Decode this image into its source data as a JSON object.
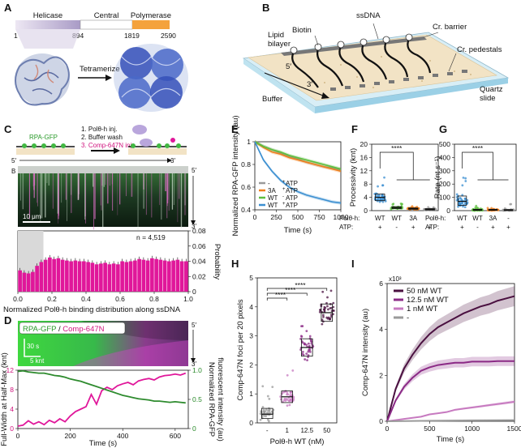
{
  "panels": {
    "A": {
      "label": "A",
      "domains": [
        "Helicase",
        "Central",
        "Polymerase"
      ],
      "positions": [
        "1",
        "894",
        "1819",
        "2590"
      ],
      "tetramerize": "Tetramerize"
    },
    "B": {
      "label": "B",
      "labels": {
        "ssdna": "ssDNA",
        "biotin": "Biotin",
        "lipid1": "Lipid",
        "lipid2": "bilayer",
        "cr_barrier": "Cr. barrier",
        "cr_pedestals": "Cr. pedestals",
        "five": "5′",
        "three": "3′",
        "buffer1": "Buffer",
        "buffer2": "flow",
        "quartz1": "Quartz",
        "quartz2": "slide"
      }
    },
    "C": {
      "label": "C",
      "steps": [
        "1. Polθ-h inj.",
        "2. Buffer wash",
        "3. Comp-647N inj."
      ],
      "rpa_gfp": "RPA-GFP",
      "panel_b": "B",
      "five": "5′",
      "three": "3′",
      "scale": "10 μm",
      "n_label": "n = 4,519",
      "ylabel": "Probability",
      "xlabel": "Normalized Polθ-h binding distribution along ssDNA"
    },
    "D": {
      "label": "D",
      "legend_green": "RPA-GFP",
      "legend_sep": " / ",
      "legend_magenta": "Comp-647N",
      "scale_time": "30 s",
      "scale_len": "5 knt",
      "five": "5′",
      "three": "3′",
      "ylabel_left": "Full-Width at Half-Max (knt)",
      "ylabel_right1": "Normalized RPA-GFP",
      "ylabel_right2": "fluorescent intensity (au)",
      "xlabel": "Time (s)"
    },
    "E": {
      "label": "E"
    },
    "F": {
      "label": "F",
      "row1": "Polθ-h:",
      "row2": "ATP:",
      "sig": "****"
    },
    "G": {
      "label": "G",
      "row1": "Polθ-h:",
      "row2": "ATP:",
      "sig": "****"
    },
    "H": {
      "label": "H",
      "sig": "****"
    },
    "I": {
      "label": "I",
      "exponent": "x10³"
    }
  },
  "chart_data": [
    {
      "id": "C",
      "type": "bar",
      "ylabel": "Probability",
      "xlabel": "Normalized Polθ-h binding distribution along ssDNA",
      "xlim": [
        0,
        1
      ],
      "ylim": [
        0,
        0.08
      ],
      "xticks": [
        "0.0",
        "0.2",
        "0.4",
        "0.6",
        "0.8",
        "1.0"
      ],
      "yticks": [
        "0",
        "0.02",
        "0.04",
        "0.06",
        "0.08"
      ],
      "shaded_region": [
        0,
        0.15
      ],
      "values": [
        0.028,
        0.025,
        0.024,
        0.026,
        0.034,
        0.039,
        0.042,
        0.045,
        0.043,
        0.044,
        0.042,
        0.041,
        0.04,
        0.041,
        0.04,
        0.04,
        0.039,
        0.038,
        0.036,
        0.037,
        0.038,
        0.036,
        0.037,
        0.036,
        0.04,
        0.039,
        0.04,
        0.041,
        0.043,
        0.042,
        0.041,
        0.044,
        0.043,
        0.042,
        0.041,
        0.04,
        0.041,
        0.042,
        0.04,
        0.04
      ]
    },
    {
      "id": "D",
      "type": "line",
      "xlabel": "Time (s)",
      "xlim": [
        0,
        650
      ],
      "ylim_left": [
        0,
        12
      ],
      "ylim_right": [
        0,
        1.0
      ],
      "xticks": [
        "0",
        "200",
        "400",
        "600"
      ],
      "yticks_left": [
        "0",
        "4",
        "8",
        "12"
      ],
      "yticks_right": [
        "0",
        "0.5",
        "1.0"
      ],
      "series": [
        {
          "name": "FWHM",
          "axis": "left",
          "color": "#e0179a",
          "x": [
            0,
            20,
            40,
            60,
            80,
            100,
            120,
            140,
            160,
            180,
            200,
            220,
            240,
            260,
            280,
            300,
            320,
            340,
            360,
            380,
            400,
            420,
            440,
            460,
            480,
            500,
            520,
            540,
            560,
            580,
            600,
            620,
            640
          ],
          "y": [
            0.5,
            0.7,
            1.6,
            0.9,
            1.4,
            0.8,
            1.7,
            1.2,
            2.0,
            1.4,
            2.6,
            3.5,
            4.0,
            4.5,
            7.0,
            5.0,
            7.8,
            8.5,
            8.0,
            8.8,
            9.2,
            9.5,
            9.0,
            9.8,
            10.1,
            10.3,
            10.0,
            10.6,
            10.9,
            11.0,
            11.2,
            11.0,
            11.4
          ]
        },
        {
          "name": "RPA-GFP",
          "axis": "right",
          "color": "#2e8b2e",
          "x": [
            0,
            20,
            40,
            60,
            80,
            100,
            120,
            140,
            160,
            180,
            200,
            220,
            240,
            260,
            280,
            300,
            320,
            340,
            360,
            380,
            400,
            420,
            440,
            460,
            480,
            500,
            520,
            540,
            560,
            580,
            600,
            620,
            640
          ],
          "y": [
            0.98,
            0.99,
            0.97,
            0.96,
            0.95,
            0.95,
            0.93,
            0.91,
            0.9,
            0.88,
            0.85,
            0.83,
            0.81,
            0.78,
            0.75,
            0.72,
            0.69,
            0.66,
            0.63,
            0.6,
            0.57,
            0.55,
            0.53,
            0.51,
            0.5,
            0.49,
            0.47,
            0.47,
            0.46,
            0.45,
            0.46,
            0.45,
            0.44
          ]
        }
      ]
    },
    {
      "id": "E",
      "type": "line",
      "ylabel": "Normalized RPA-GFP intensity (au)",
      "xlabel": "Time (s)",
      "xlim": [
        0,
        1000
      ],
      "ylim": [
        0.4,
        1.0
      ],
      "xticks": [
        "0",
        "250",
        "500",
        "750",
        "1000"
      ],
      "yticks": [
        "0.4",
        "0.6",
        "0.8",
        "1"
      ],
      "legend": [
        {
          "protein": "-",
          "atp": "ATP",
          "sign": "+",
          "color": "#9a9a9a"
        },
        {
          "protein": "3A",
          "atp": "ATP",
          "sign": "+",
          "color": "#f07f1c"
        },
        {
          "protein": "WT",
          "atp": "ATP",
          "sign": "-",
          "color": "#5cbf3e"
        },
        {
          "protein": "WT",
          "atp": "ATP",
          "sign": "+",
          "color": "#3b8fd1"
        }
      ],
      "series": [
        {
          "name": "- +ATP",
          "color": "#9a9a9a",
          "x": [
            0,
            100,
            200,
            300,
            400,
            500,
            600,
            700,
            800,
            900,
            1000
          ],
          "y": [
            1.0,
            0.96,
            0.93,
            0.9,
            0.87,
            0.85,
            0.82,
            0.8,
            0.78,
            0.77,
            0.75
          ]
        },
        {
          "name": "3A +ATP",
          "color": "#f07f1c",
          "x": [
            0,
            100,
            200,
            300,
            400,
            500,
            600,
            700,
            800,
            900,
            1000
          ],
          "y": [
            1.0,
            0.95,
            0.91,
            0.89,
            0.86,
            0.84,
            0.82,
            0.8,
            0.78,
            0.76,
            0.74
          ]
        },
        {
          "name": "WT -ATP",
          "color": "#5cbf3e",
          "x": [
            0,
            100,
            200,
            300,
            400,
            500,
            600,
            700,
            800,
            900,
            1000
          ],
          "y": [
            1.0,
            0.96,
            0.93,
            0.91,
            0.88,
            0.86,
            0.84,
            0.82,
            0.8,
            0.78,
            0.76
          ]
        },
        {
          "name": "WT +ATP",
          "color": "#3b8fd1",
          "x": [
            0,
            100,
            200,
            300,
            400,
            500,
            600,
            700,
            800,
            900,
            1000
          ],
          "y": [
            1.0,
            0.84,
            0.74,
            0.66,
            0.6,
            0.56,
            0.53,
            0.51,
            0.49,
            0.47,
            0.46
          ]
        }
      ]
    },
    {
      "id": "F",
      "type": "scatter",
      "ylabel": "Processivity (knt)",
      "ylim": [
        0,
        20
      ],
      "yticks": [
        "0",
        "4",
        "8",
        "12",
        "16",
        "20"
      ],
      "categories": [
        "WT",
        "WT",
        "3A",
        "-"
      ],
      "atp": [
        "+",
        "-",
        "+",
        "+"
      ],
      "colors": [
        "#3b8fd1",
        "#5cbf3e",
        "#f07f1c",
        "#9a9a9a"
      ],
      "medians": [
        4.0,
        0.9,
        0.6,
        0.4
      ],
      "q1": [
        3.0,
        0.6,
        0.4,
        0.2
      ],
      "q3": [
        5.0,
        1.2,
        0.8,
        0.6
      ],
      "spread_max": [
        12.0,
        2.2,
        1.5,
        1.2
      ]
    },
    {
      "id": "G",
      "type": "scatter",
      "ylabel": "Rate (nt s⁻¹)",
      "ylim": [
        0,
        500
      ],
      "yticks": [
        "0",
        "100",
        "200",
        "300",
        "400",
        "500"
      ],
      "categories": [
        "WT",
        "WT",
        "3A",
        "-"
      ],
      "atp": [
        "+",
        "-",
        "+",
        "+"
      ],
      "colors": [
        "#3b8fd1",
        "#5cbf3e",
        "#f07f1c",
        "#9a9a9a"
      ],
      "medians": [
        70,
        5,
        5,
        3
      ],
      "q1": [
        40,
        2,
        2,
        1
      ],
      "q3": [
        110,
        10,
        10,
        8
      ],
      "spread_max": [
        400,
        40,
        20,
        50
      ]
    },
    {
      "id": "H",
      "type": "scatter",
      "ylabel": "Comp-647N foci per 20 pixels",
      "xlabel": "Polθ-h WT (nM)",
      "ylim": [
        0,
        5
      ],
      "yticks": [
        "0",
        "1",
        "2",
        "3",
        "4",
        "5"
      ],
      "categories": [
        "-",
        "1",
        "12.5",
        "50"
      ],
      "colors": [
        "#9a9a9a",
        "#c77ac0",
        "#8b2a86",
        "#4a1040"
      ],
      "medians": [
        0.3,
        0.9,
        2.6,
        3.8
      ],
      "q1": [
        0.15,
        0.7,
        2.3,
        3.5
      ],
      "q3": [
        0.5,
        1.1,
        2.9,
        4.1
      ],
      "spread_min": [
        0.0,
        0.3,
        1.7,
        2.8
      ],
      "spread_max": [
        1.5,
        2.0,
        3.6,
        4.6
      ]
    },
    {
      "id": "I",
      "type": "line",
      "ylabel": "Comp-647N intensity (au)",
      "xlabel": "Time (s)",
      "xlim": [
        0,
        1500
      ],
      "ylim": [
        0,
        6
      ],
      "xticks": [
        "0",
        "500",
        "1000",
        "1500"
      ],
      "yticks": [
        "0",
        "2",
        "4",
        "6"
      ],
      "legend": [
        "50 nM WT",
        "12.5 nM WT",
        "1 nM WT",
        "-"
      ],
      "series": [
        {
          "name": "50 nM WT",
          "color": "#4a1040",
          "x": [
            0,
            100,
            200,
            300,
            400,
            500,
            600,
            700,
            800,
            900,
            1000,
            1100,
            1200,
            1300,
            1400,
            1500
          ],
          "y": [
            0,
            1.4,
            2.3,
            2.9,
            3.4,
            3.8,
            4.1,
            4.3,
            4.5,
            4.7,
            4.85,
            5.0,
            5.1,
            5.25,
            5.35,
            5.45
          ]
        },
        {
          "name": "12.5 nM WT",
          "color": "#8b2a86",
          "x": [
            0,
            100,
            200,
            300,
            400,
            500,
            600,
            700,
            800,
            900,
            1000,
            1100,
            1200,
            1300,
            1400,
            1500
          ],
          "y": [
            0,
            0.9,
            1.5,
            1.9,
            2.2,
            2.35,
            2.45,
            2.5,
            2.55,
            2.55,
            2.6,
            2.6,
            2.6,
            2.62,
            2.62,
            2.62
          ]
        },
        {
          "name": "1 nM WT",
          "color": "#c77ac0",
          "x": [
            0,
            100,
            200,
            300,
            400,
            500,
            600,
            700,
            800,
            900,
            1000,
            1100,
            1200,
            1300,
            1400,
            1500
          ],
          "y": [
            0,
            0.05,
            0.1,
            0.15,
            0.2,
            0.3,
            0.35,
            0.4,
            0.5,
            0.55,
            0.6,
            0.65,
            0.7,
            0.75,
            0.8,
            0.85
          ]
        },
        {
          "name": "-",
          "color": "#9a9a9a",
          "x": [
            0,
            500,
            1000,
            1500
          ],
          "y": [
            0,
            0.02,
            0.04,
            0.05
          ]
        }
      ]
    }
  ]
}
